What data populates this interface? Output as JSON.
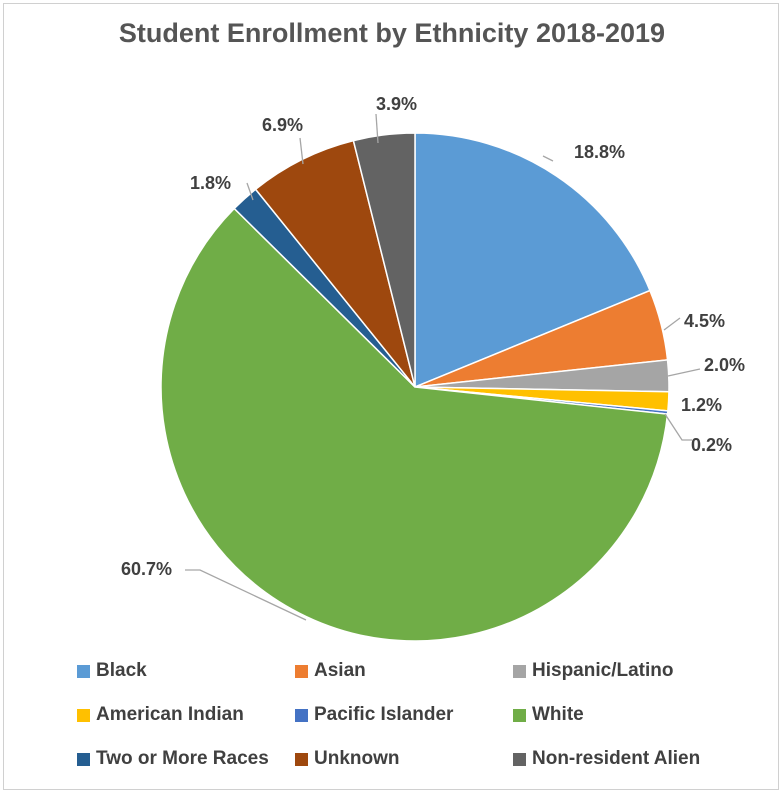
{
  "chart_data": {
    "type": "pie",
    "title": "Student Enrollment by Ethnicity 2018-2019",
    "categories": [
      "Black",
      "Asian",
      "Hispanic/Latino",
      "American Indian",
      "Pacific Islander",
      "White",
      "Two or More Races",
      "Unknown",
      "Non-resident Alien"
    ],
    "values": [
      18.8,
      4.5,
      2.0,
      1.2,
      0.2,
      60.7,
      1.8,
      6.9,
      3.9
    ],
    "data_labels": [
      "18.8%",
      "4.5%",
      "2.0%",
      "1.2%",
      "0.2%",
      "60.7%",
      "1.8%",
      "6.9%",
      "3.9%"
    ],
    "colors": [
      "#5B9BD5",
      "#ED7D31",
      "#A5A5A5",
      "#FFC000",
      "#4472C4",
      "#70AD47",
      "#255E91",
      "#9E480E",
      "#636363"
    ],
    "legend_position": "bottom",
    "start_angle": "top, clockwise"
  }
}
